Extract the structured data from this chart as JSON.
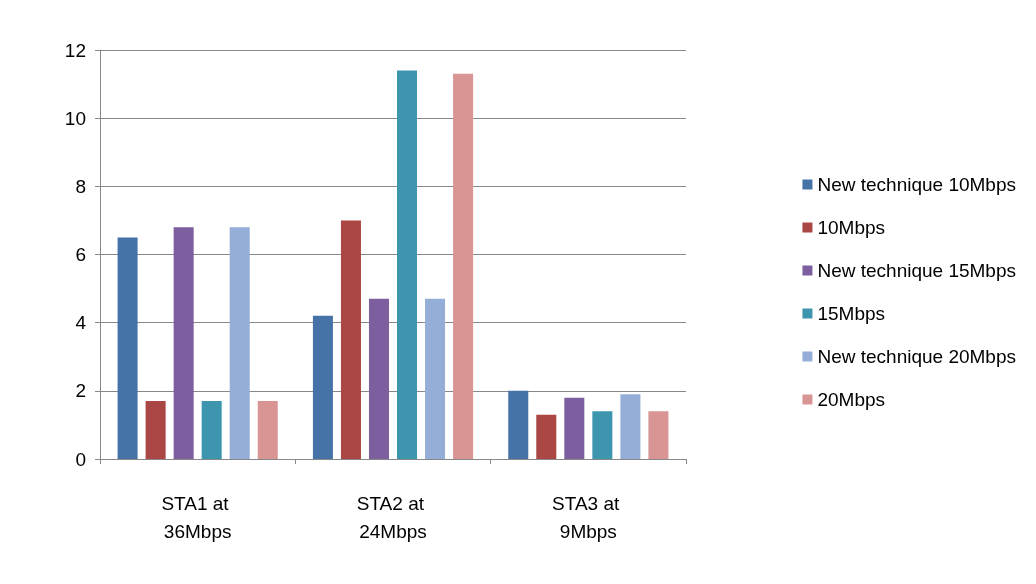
{
  "chart_data": {
    "type": "bar",
    "categories": [
      "STA1 at 36Mbps",
      "STA2 at 24Mbps",
      "STA3 at 9Mbps"
    ],
    "series": [
      {
        "name": "New technique 10Mbps",
        "color": "#4572a7",
        "values": [
          6.5,
          4.2,
          2.0
        ]
      },
      {
        "name": "10Mbps",
        "color": "#aa4643",
        "values": [
          1.7,
          7.0,
          1.3
        ]
      },
      {
        "name": "New technique 15Mbps",
        "color": "#7d5fa0",
        "values": [
          6.8,
          4.7,
          1.8
        ]
      },
      {
        "name": "15Mbps",
        "color": "#3d96ae",
        "values": [
          1.7,
          11.4,
          1.4
        ]
      },
      {
        "name": "New technique 20Mbps",
        "color": "#95aed8",
        "values": [
          6.8,
          4.7,
          1.9
        ]
      },
      {
        "name": "20Mbps",
        "color": "#d89594",
        "values": [
          1.7,
          11.3,
          1.4
        ]
      }
    ],
    "ylim": [
      0,
      12
    ],
    "yticks": [
      0,
      2,
      4,
      6,
      8,
      10,
      12
    ],
    "grid": "y",
    "legend": "right"
  }
}
